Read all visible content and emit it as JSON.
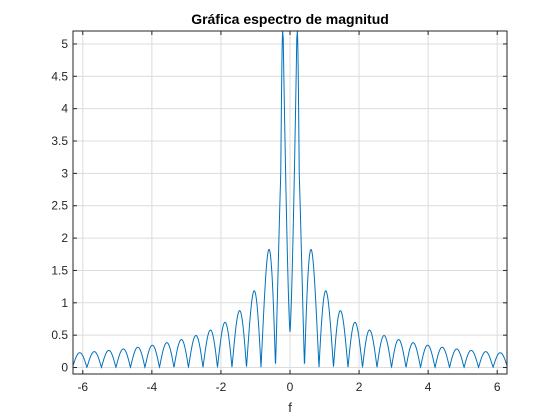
{
  "chart_data": {
    "type": "line",
    "title": "Gráfica espectro de magnitud",
    "xlabel": "f",
    "ylabel": "",
    "xlim": [
      -6.2832,
      6.2832
    ],
    "ylim": [
      -0.1,
      5.2
    ],
    "xticks": [
      -6,
      -4,
      -2,
      0,
      2,
      4,
      6
    ],
    "yticks": [
      0,
      0.5,
      1,
      1.5,
      2,
      2.5,
      3,
      3.5,
      4,
      4.5,
      5
    ],
    "ytick_labels": [
      "0",
      "0.5",
      "1",
      "1.5",
      "2",
      "2.5",
      "3",
      "3.5",
      "4",
      "4.5",
      "5"
    ],
    "grid": true,
    "series_color": "#0072bd",
    "series": [
      {
        "description_free": true,
        "x_start": -6.2832,
        "x_end": 6.2832,
        "samples": 1600
      }
    ]
  }
}
